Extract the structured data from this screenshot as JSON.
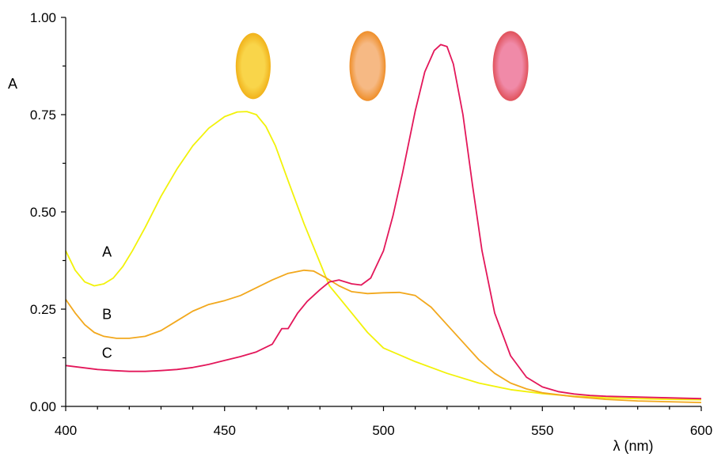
{
  "chart_data": {
    "type": "line",
    "xlabel": "λ (nm)",
    "ylabel": "A",
    "xlim": [
      400,
      600
    ],
    "ylim": [
      0,
      1
    ],
    "x_ticks": [
      "400",
      "450",
      "500",
      "550",
      "600"
    ],
    "y_ticks": [
      "0.00",
      "0.25",
      "0.50",
      "0.75",
      "1.00"
    ],
    "grid": false,
    "series": [
      {
        "name": "A",
        "color": "#f2f20a",
        "x": [
          400,
          403,
          406,
          409,
          412,
          415,
          418,
          421,
          425,
          430,
          435,
          440,
          445,
          450,
          454,
          457,
          460,
          463,
          466,
          470,
          475,
          480,
          483,
          486,
          490,
          495,
          500,
          510,
          520,
          530,
          540,
          550,
          560,
          570,
          580,
          590,
          600
        ],
        "y": [
          0.4,
          0.35,
          0.32,
          0.31,
          0.315,
          0.33,
          0.36,
          0.4,
          0.46,
          0.54,
          0.61,
          0.67,
          0.715,
          0.745,
          0.757,
          0.758,
          0.75,
          0.72,
          0.67,
          0.58,
          0.47,
          0.37,
          0.31,
          0.28,
          0.24,
          0.19,
          0.15,
          0.115,
          0.085,
          0.06,
          0.043,
          0.033,
          0.026,
          0.022,
          0.02,
          0.018,
          0.017
        ]
      },
      {
        "name": "B",
        "color": "#f2a81d",
        "x": [
          400,
          403,
          406,
          409,
          412,
          416,
          420,
          425,
          430,
          435,
          440,
          445,
          450,
          455,
          460,
          465,
          470,
          475,
          478,
          482,
          486,
          490,
          495,
          500,
          505,
          510,
          515,
          520,
          525,
          530,
          535,
          540,
          545,
          550,
          560,
          570,
          580,
          590,
          600
        ],
        "y": [
          0.275,
          0.24,
          0.21,
          0.19,
          0.18,
          0.175,
          0.175,
          0.18,
          0.195,
          0.22,
          0.245,
          0.262,
          0.272,
          0.285,
          0.305,
          0.325,
          0.342,
          0.35,
          0.348,
          0.33,
          0.31,
          0.295,
          0.29,
          0.292,
          0.293,
          0.285,
          0.255,
          0.21,
          0.165,
          0.12,
          0.085,
          0.06,
          0.045,
          0.035,
          0.025,
          0.018,
          0.014,
          0.012,
          0.01
        ]
      },
      {
        "name": "C",
        "color": "#e3175a",
        "x": [
          400,
          405,
          410,
          415,
          420,
          425,
          430,
          435,
          440,
          445,
          450,
          455,
          460,
          465,
          468,
          470,
          473,
          476,
          480,
          483,
          486,
          490,
          493,
          496,
          500,
          503,
          506,
          510,
          513,
          516,
          518,
          520,
          522,
          525,
          528,
          531,
          535,
          540,
          545,
          550,
          555,
          560,
          565,
          570,
          580,
          590,
          600
        ],
        "y": [
          0.105,
          0.1,
          0.095,
          0.092,
          0.09,
          0.09,
          0.092,
          0.095,
          0.1,
          0.108,
          0.118,
          0.128,
          0.14,
          0.16,
          0.2,
          0.2,
          0.24,
          0.27,
          0.3,
          0.32,
          0.325,
          0.315,
          0.312,
          0.33,
          0.4,
          0.49,
          0.6,
          0.76,
          0.86,
          0.915,
          0.93,
          0.925,
          0.88,
          0.75,
          0.57,
          0.4,
          0.24,
          0.13,
          0.075,
          0.05,
          0.038,
          0.032,
          0.028,
          0.026,
          0.024,
          0.022,
          0.02
        ]
      }
    ],
    "annotations": [
      {
        "text": "A",
        "x": 413,
        "y": 0.385
      },
      {
        "text": "B",
        "x": 413,
        "y": 0.225
      },
      {
        "text": "C",
        "x": 413,
        "y": 0.125
      }
    ],
    "sample_spots": [
      {
        "x": 459,
        "y": 0.875,
        "rx": 5.5,
        "ry": 0.085,
        "center": "#f9d54a",
        "edge": "#f1b21a"
      },
      {
        "x": 495,
        "y": 0.875,
        "rx": 5.7,
        "ry": 0.09,
        "center": "#f6b984",
        "edge": "#ef8e28"
      },
      {
        "x": 540,
        "y": 0.875,
        "rx": 5.6,
        "ry": 0.09,
        "center": "#f08aa8",
        "edge": "#e0515a"
      }
    ]
  }
}
